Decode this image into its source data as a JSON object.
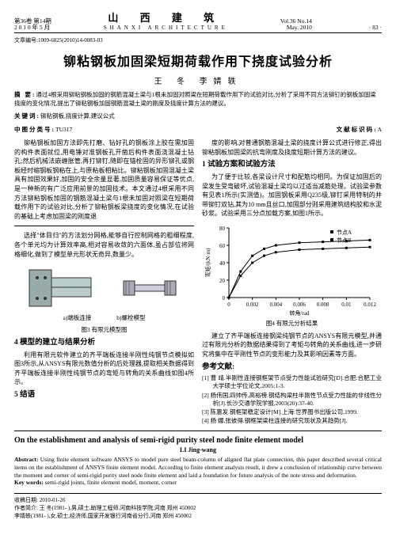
{
  "header": {
    "vol_issue_cn": "第36卷 第14期",
    "date_cn": "2 0 1 0 年 5 月",
    "journal_cn": "山 西 建 筑",
    "journal_en": "SHANXI ARCHITECTURE",
    "vol_issue_en": "Vol.36 No.14",
    "date_en": "May. 2010",
    "page_no": "· 83 ·"
  },
  "article_code": "文章编号:1009-6825(2010)14-0083-03",
  "title_cn": "铆粘钢板加固梁短期荷载作用下挠度试验分析",
  "authors_cn": "王 冬  李婧轶",
  "abstract_cn": {
    "label": "摘 要:",
    "text": "通过4根采用铆粘钢板加固的钢筋混凝土梁与1根未加固对照梁在短期荷载作用下的试验对比,分析了采用不同方法铆钉的钢板加固梁挠度的变化情况,提出了铆粘钢板加固钢筋混凝土梁的刚度及挠度计算方法的建议。"
  },
  "keywords_cn": {
    "label": "关键词:",
    "text": "铆粘钢板,挠度计算,建议公式"
  },
  "clc": {
    "label": "中图分类号:",
    "code": "TU317"
  },
  "doc_code": {
    "label": "文献标识码:",
    "code": "A"
  },
  "left_col": {
    "p1": "铆粘钢板加固方法即先打磨、钻好孔的钢板涂上胶在需加固的构件表面就位,用电锤对准钢板孔开凿后构件表面浇混凝土钻孔;然后机械法嵌缠胀管,再打铆钉,随即在锚栓固的异形铆孔或钢板经时缩钢板钢粘在上,与原粘板相粘比。铆粘钢板加固混凝土梁具有加固效果好,加固的安全余量显著,加固质量容易保证等优点,是一种新的有广泛应用前景的加固技术。本文通过4根采用不同方法铆粘钢板加固的钢筋混凝土梁与1根未加固对照梁在短期荷载作用下的试验对比,分析了铆粘钢板梁挠度的变化情况,在试验的基础上考虑加固梁的刚度退",
    "p2": "选择\"体目归\"的方法划分网格,能够自行控制网格的粗细程度,各个单元均为计算效率高,相对容易收敛的六面体,虽占部位将网格细化,做到了模型单元形状无奇异,数量少。"
  },
  "right_col": {
    "p1": "度的影响,对普通钢筋混凝土梁的挠度计算公式进行修正,得出铆粘钢板加固梁的抗弯刚度及挠度短期计算方法的建议。",
    "h1": "1 试验方案和试验方法",
    "p2": "为了便于比较,各梁设计尺寸和配筋均相同。为保证加固后的梁发生受弯破坏,试验混凝土梁均以过适当减筋处理。试验梁参数有见表1所示(实测值)。加固钢板采用Q235级,铆钉采用特制的并带铆钉双钻,其为10 mm且丝口,加固部分则采用建筑结构胶和水泥砂浆。试验采用三分点加载方案,如图1所示。",
    "chart": {
      "type": "line",
      "title": "图4 有限元分析结果",
      "x_label": "转角/rad",
      "y_label": "弯矩/(kN·m)",
      "x_ticks": [
        0,
        0.002,
        0.004,
        0.006,
        0.008,
        0.01,
        0.012
      ],
      "y_ticks": [
        0,
        20,
        40,
        60,
        80
      ],
      "xlim": [
        0,
        0.012
      ],
      "ylim": [
        0,
        80
      ],
      "series": [
        {
          "name": "节点A",
          "marker": "square",
          "marker_size": 3,
          "color": "#000000",
          "x": [
            0,
            0.001,
            0.002,
            0.003,
            0.004,
            0.006,
            0.008,
            0.01,
            0.012
          ],
          "y": [
            0,
            30,
            48,
            56,
            60,
            63,
            64,
            65,
            66
          ]
        },
        {
          "name": "节点B",
          "marker": "square",
          "marker_size": 3,
          "color": "#000000",
          "x": [
            0,
            0.001,
            0.002,
            0.003,
            0.004,
            0.006,
            0.008,
            0.01,
            0.012
          ],
          "y": [
            0,
            25,
            40,
            48,
            52,
            55,
            56,
            57,
            58
          ]
        }
      ],
      "legend_items": [
        "节点A",
        "节点B"
      ],
      "background_color": "#ffffff",
      "axis_color": "#000000",
      "label_fontsize": 7
    },
    "p3": "建立了齐平端板连接钢梁纯钢节点的ANSYS有限元模型,并通过有限元分析的数据结果得到了考矩与转角的关系曲线,进一步研究将集中在平刚性节点的变形能力及其影响因素等方面。",
    "refs_h": "参考文献:",
    "refs": [
      "[1] 曹  靖.半刚性连接钢框架节点受力性能试验研究[D].合肥:合肥工业大学硕士学位论文,2005:1-3.",
      "[2] 杨伟国,四帅传,高裕榜.钢结构梁柱半刚性节点受力性能的非线性分析[J].长沙交通学院学报,2003(20):37-40.",
      "[3] 陈惠发.钢框架稳定设计[M].上海:世界图书出版公司,1999.",
      "[4] 杨  娜,张彼得.钢框架梁柱连接的研究现状及其趋势[J]."
    ]
  },
  "fig3": {
    "caption": "图3 有限元模型图",
    "sub_a": "a)端板连接",
    "sub_b": "b)螺栓模型"
  },
  "sec4_h": "4 模型的建立与结果分析",
  "sec4_p": "利用有限元软件建立的齐平端板连接半刚性纯钢节点模拟如图3所示,从ANSYS有限元数值分析的后处理器,提取相关数据得到齐平端板连接半刚性纯钢节点的弯矩与转角的关系曲线如图4所示。",
  "sec5_h": "5 结语",
  "en": {
    "title": "On the establishment and analysis of semi-rigid purity steel node finite element model",
    "author": "LI Jing-wang",
    "abstract_label": "Abstract:",
    "abstract": " Using finite element software ANSYS to model pure steel beam-column of aligned flat plate connection, this paper described several critical items on the establishment of ANSYS finite element model. According to finite element analysis result, it drew a conclusion of relationship curve between the moment and corner of semi-rigid purity steel node finite element and laid a foundation for future analysis of the note stress and deformation.",
    "kw_label": "Key words:",
    "kw": " semi-rigid joints, finite element model, moment, corner"
  },
  "footer": {
    "recv": "收稿日期: 2010-01-26",
    "bio1": "作者简介: 王  冬(1981- ),男,硕士,助理工程师,河南科技学院,河南 郑州  450002",
    "bio2": "          李婧轶(1981- ),女,硕士,经济师,国家开发银行河南省分行,河南 郑州  450002"
  },
  "colors": {
    "text": "#000000",
    "bg": "#ffffff",
    "line": "#000000"
  }
}
